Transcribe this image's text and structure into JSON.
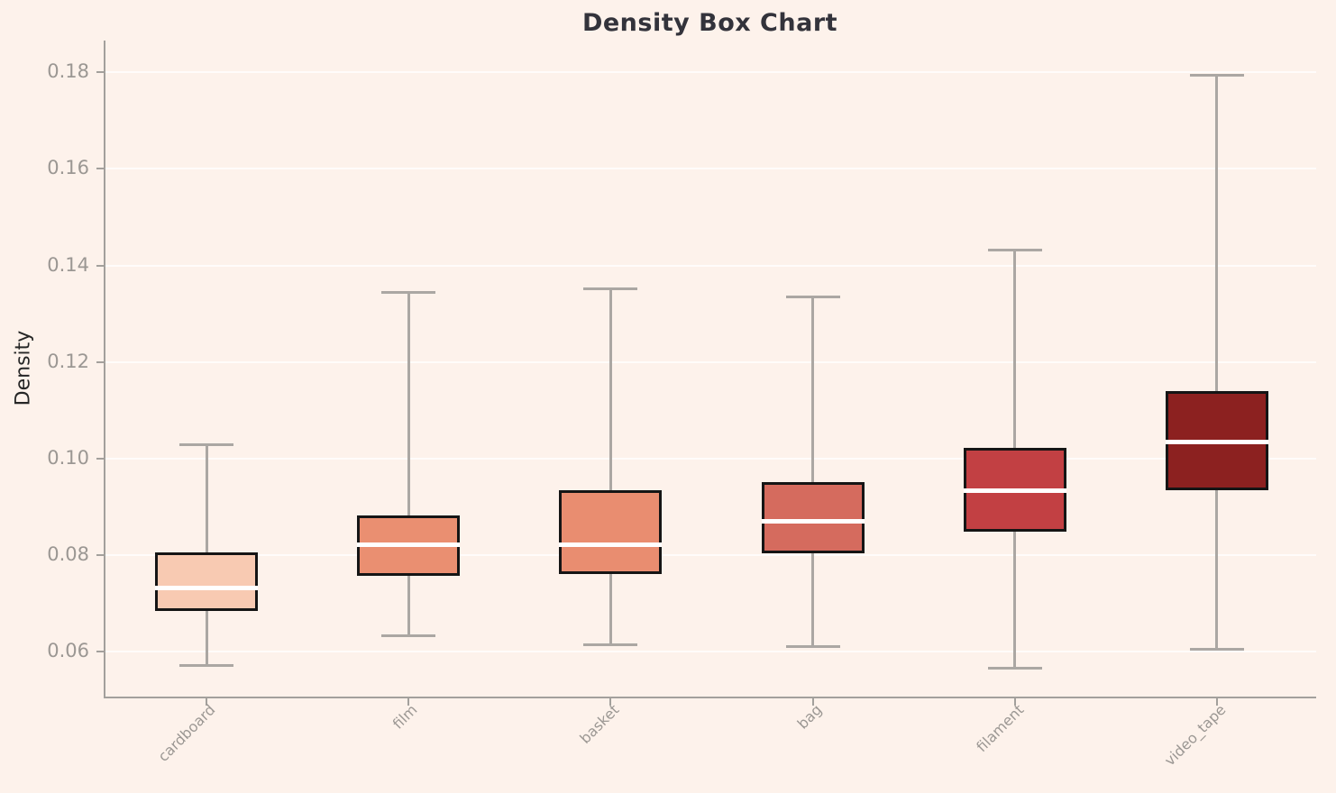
{
  "chart_data": {
    "type": "box",
    "title": "Density Box Chart",
    "ylabel": "Density",
    "xlabel": "",
    "categories": [
      "cardboard",
      "film",
      "basket",
      "bag",
      "filament",
      "video_tape"
    ],
    "yticks": [
      0.06,
      0.08,
      0.1,
      0.12,
      0.14,
      0.16,
      0.18
    ],
    "ytick_labels": [
      "0.06",
      "0.08",
      "0.10",
      "0.12",
      "0.14",
      "0.16",
      "0.18"
    ],
    "ylim": [
      0.0503,
      0.1866
    ],
    "grid": "horizontal",
    "legend": "none",
    "series": [
      {
        "name": "cardboard",
        "min": 0.0572,
        "q1": 0.0685,
        "median": 0.0731,
        "q3": 0.0805,
        "max": 0.1029,
        "color": "#f8cab2"
      },
      {
        "name": "film",
        "min": 0.0632,
        "q1": 0.0757,
        "median": 0.0822,
        "q3": 0.0882,
        "max": 0.1345,
        "color": "#ea8f71"
      },
      {
        "name": "basket",
        "min": 0.0615,
        "q1": 0.076,
        "median": 0.0822,
        "q3": 0.0935,
        "max": 0.1351,
        "color": "#e98d70"
      },
      {
        "name": "bag",
        "min": 0.061,
        "q1": 0.0803,
        "median": 0.087,
        "q3": 0.0952,
        "max": 0.1335,
        "color": "#d56b5e"
      },
      {
        "name": "filament",
        "min": 0.0566,
        "q1": 0.0848,
        "median": 0.0933,
        "q3": 0.1022,
        "max": 0.1432,
        "color": "#c24043"
      },
      {
        "name": "video_tape",
        "min": 0.0605,
        "q1": 0.0935,
        "median": 0.1035,
        "q3": 0.114,
        "max": 0.1795,
        "color": "#8c2120"
      }
    ]
  },
  "colors": {
    "background": "#fdf2eb",
    "gridline": "rgba(255,255,255,0.75)",
    "spine": "#a3a09c",
    "whisker": "#aba7a3",
    "box_edge": "#151515",
    "median": "#ffffff",
    "tick_label": "#9b9793",
    "title_text": "#33333b",
    "axis_label_text": "#262626"
  }
}
